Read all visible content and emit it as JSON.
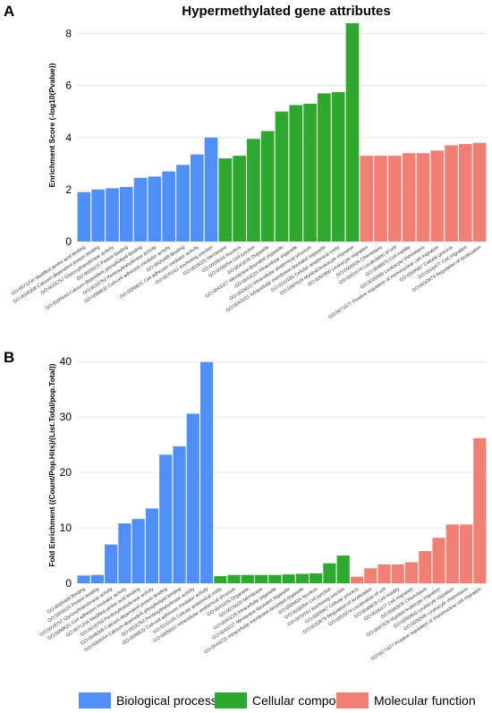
{
  "panel_a_letter": "A",
  "panel_b_letter": "B",
  "legend": [
    {
      "label": "Biological process",
      "color": "#4f8ff7"
    },
    {
      "label": "Cellular component",
      "color": "#2ea82e"
    },
    {
      "label": "Molecular function",
      "color": "#f27f74"
    }
  ],
  "chart_data": [
    {
      "type": "bar",
      "title": "Hypermethylated gene attributes",
      "xlabel": "",
      "ylabel": "Enrichment Score (-log10(Pvalue))",
      "ylim": [
        0,
        8.5
      ],
      "yticks": [
        0,
        2,
        4,
        6,
        8
      ],
      "grid": true,
      "categories": [
        "GO:0071234 Modified amino acid binding",
        "GO:0048306 Calcium-dependent protein binding",
        "GO:0016757 Glycosyltransferase activity",
        "GO:0005515 Protein binding",
        "GO:0005544 Calcium-dependent phospholipid binding",
        "GO:0016763 Pentosyltransferase activity",
        "GO:0098632 Cell-cell adhesion mediator activity",
        "GO:0005488 Binding",
        "GO:0098631 Cell adhesion mediator activity",
        "GO:0070161 Anchoring junction",
        "GO:0016020 Membrane",
        "GO:0005634 Nucleus",
        "GO:0030054 Cell junction",
        "GO:0043226 Organelle",
        "GO:0043227 Membrane-bounded organelle",
        "GO:0043229 Intracellular organelle",
        "GO:0005622 Intracellular anatomical structure",
        "GO:0043231 Intracellular membrane-bounded organelle",
        "GO:0110165 Cellular anatomical entity",
        "GO:0097529 Myeloid leukocyte migration",
        "GO:0050900 Leukocyte migration",
        "GO:0006935 Chemotaxis",
        "GO:0051674 Localization of cell",
        "GO:0048870 Cell motility",
        "GO:0030595 Leukocyte chemotaxis",
        "GO:0071677 Positive regulation of mononuclear cell migration",
        "GO:0009987 Cellular process",
        "GO:0016477 Cell migration",
        "GO:0032879 Regulation of localization"
      ],
      "values": [
        1.9,
        2.0,
        2.05,
        2.1,
        2.45,
        2.5,
        2.7,
        2.95,
        3.35,
        4.0,
        3.2,
        3.3,
        3.95,
        4.25,
        5.0,
        5.25,
        5.3,
        5.7,
        5.75,
        8.4,
        3.3,
        3.3,
        3.3,
        3.4,
        3.4,
        3.5,
        3.7,
        3.75,
        3.8
      ],
      "groups": [
        "Biological process",
        "Biological process",
        "Biological process",
        "Biological process",
        "Biological process",
        "Biological process",
        "Biological process",
        "Biological process",
        "Biological process",
        "Biological process",
        "Cellular component",
        "Cellular component",
        "Cellular component",
        "Cellular component",
        "Cellular component",
        "Cellular component",
        "Cellular component",
        "Cellular component",
        "Cellular component",
        "Cellular component",
        "Molecular function",
        "Molecular function",
        "Molecular function",
        "Molecular function",
        "Molecular function",
        "Molecular function",
        "Molecular function",
        "Molecular function",
        "Molecular function"
      ]
    },
    {
      "type": "bar",
      "title": "",
      "xlabel": "",
      "ylabel": "Fold Enrichment ((Count/Pop.Hits)/(List.Total/pop.Total))",
      "ylim": [
        0,
        41
      ],
      "yticks": [
        0,
        10,
        20,
        30,
        40
      ],
      "grid": true,
      "categories": [
        "GO:0005488 Binding",
        "GO:0005515 Protein binding",
        "GO:0016757 Glycosyltransferase activity",
        "GO:0098631 Cell adhesion mediator activity",
        "GO:0071234 Modified amino acid binding",
        "GO:0016763 Pentosyltransferase activity",
        "GO:0048306 Calcium-dependent protein binding",
        "GO:0005544 Calcium-dependent phospholipid binding",
        "GO:0016763 Pentosyltransferase activity",
        "GO:0098632 Cell-cell adhesion mediator activity",
        "GO:0110165 Cellular anatomical entity",
        "GO:0005622 Intracellular anatomical structure",
        "GO:0043226 Organelle",
        "GO:0016020 Membrane",
        "GO:0043229 Intracellular organelle",
        "GO:0043227 Membrane-bounded organelle",
        "GO:0043231 Intracellular membrane-bounded organelle",
        "GO:0005634 Nucleus",
        "GO:0030054 Cell junction",
        "GO:0070161 Anchoring junction",
        "GO:0009987 Cellular process",
        "GO:0032879 Regulation of localization",
        "GO:0051674 Localization of cell",
        "GO:0048870 Cell motility",
        "GO:0016477 Cell migration",
        "GO:0006935 Chemotaxis",
        "GO:0097529 Myeloid leukocyte migration",
        "GO:0050900 Leukocyte migration",
        "GO:0030595 Leukocyte chemotaxis",
        "GO:0071677 Positive regulation of mononuclear cell migration"
      ],
      "values": [
        1.4,
        1.5,
        7.0,
        10.8,
        11.6,
        13.5,
        23.2,
        24.7,
        30.6,
        39.9,
        1.3,
        1.5,
        1.5,
        1.5,
        1.5,
        1.6,
        1.7,
        1.8,
        3.6,
        5.0,
        1.2,
        2.7,
        3.4,
        3.4,
        3.8,
        5.8,
        8.2,
        10.6,
        10.6,
        26.2
      ],
      "groups": [
        "Biological process",
        "Biological process",
        "Biological process",
        "Biological process",
        "Biological process",
        "Biological process",
        "Biological process",
        "Biological process",
        "Biological process",
        "Biological process",
        "Cellular component",
        "Cellular component",
        "Cellular component",
        "Cellular component",
        "Cellular component",
        "Cellular component",
        "Cellular component",
        "Cellular component",
        "Cellular component",
        "Cellular component",
        "Molecular function",
        "Molecular function",
        "Molecular function",
        "Molecular function",
        "Molecular function",
        "Molecular function",
        "Molecular function",
        "Molecular function",
        "Molecular function",
        "Molecular function"
      ]
    }
  ]
}
